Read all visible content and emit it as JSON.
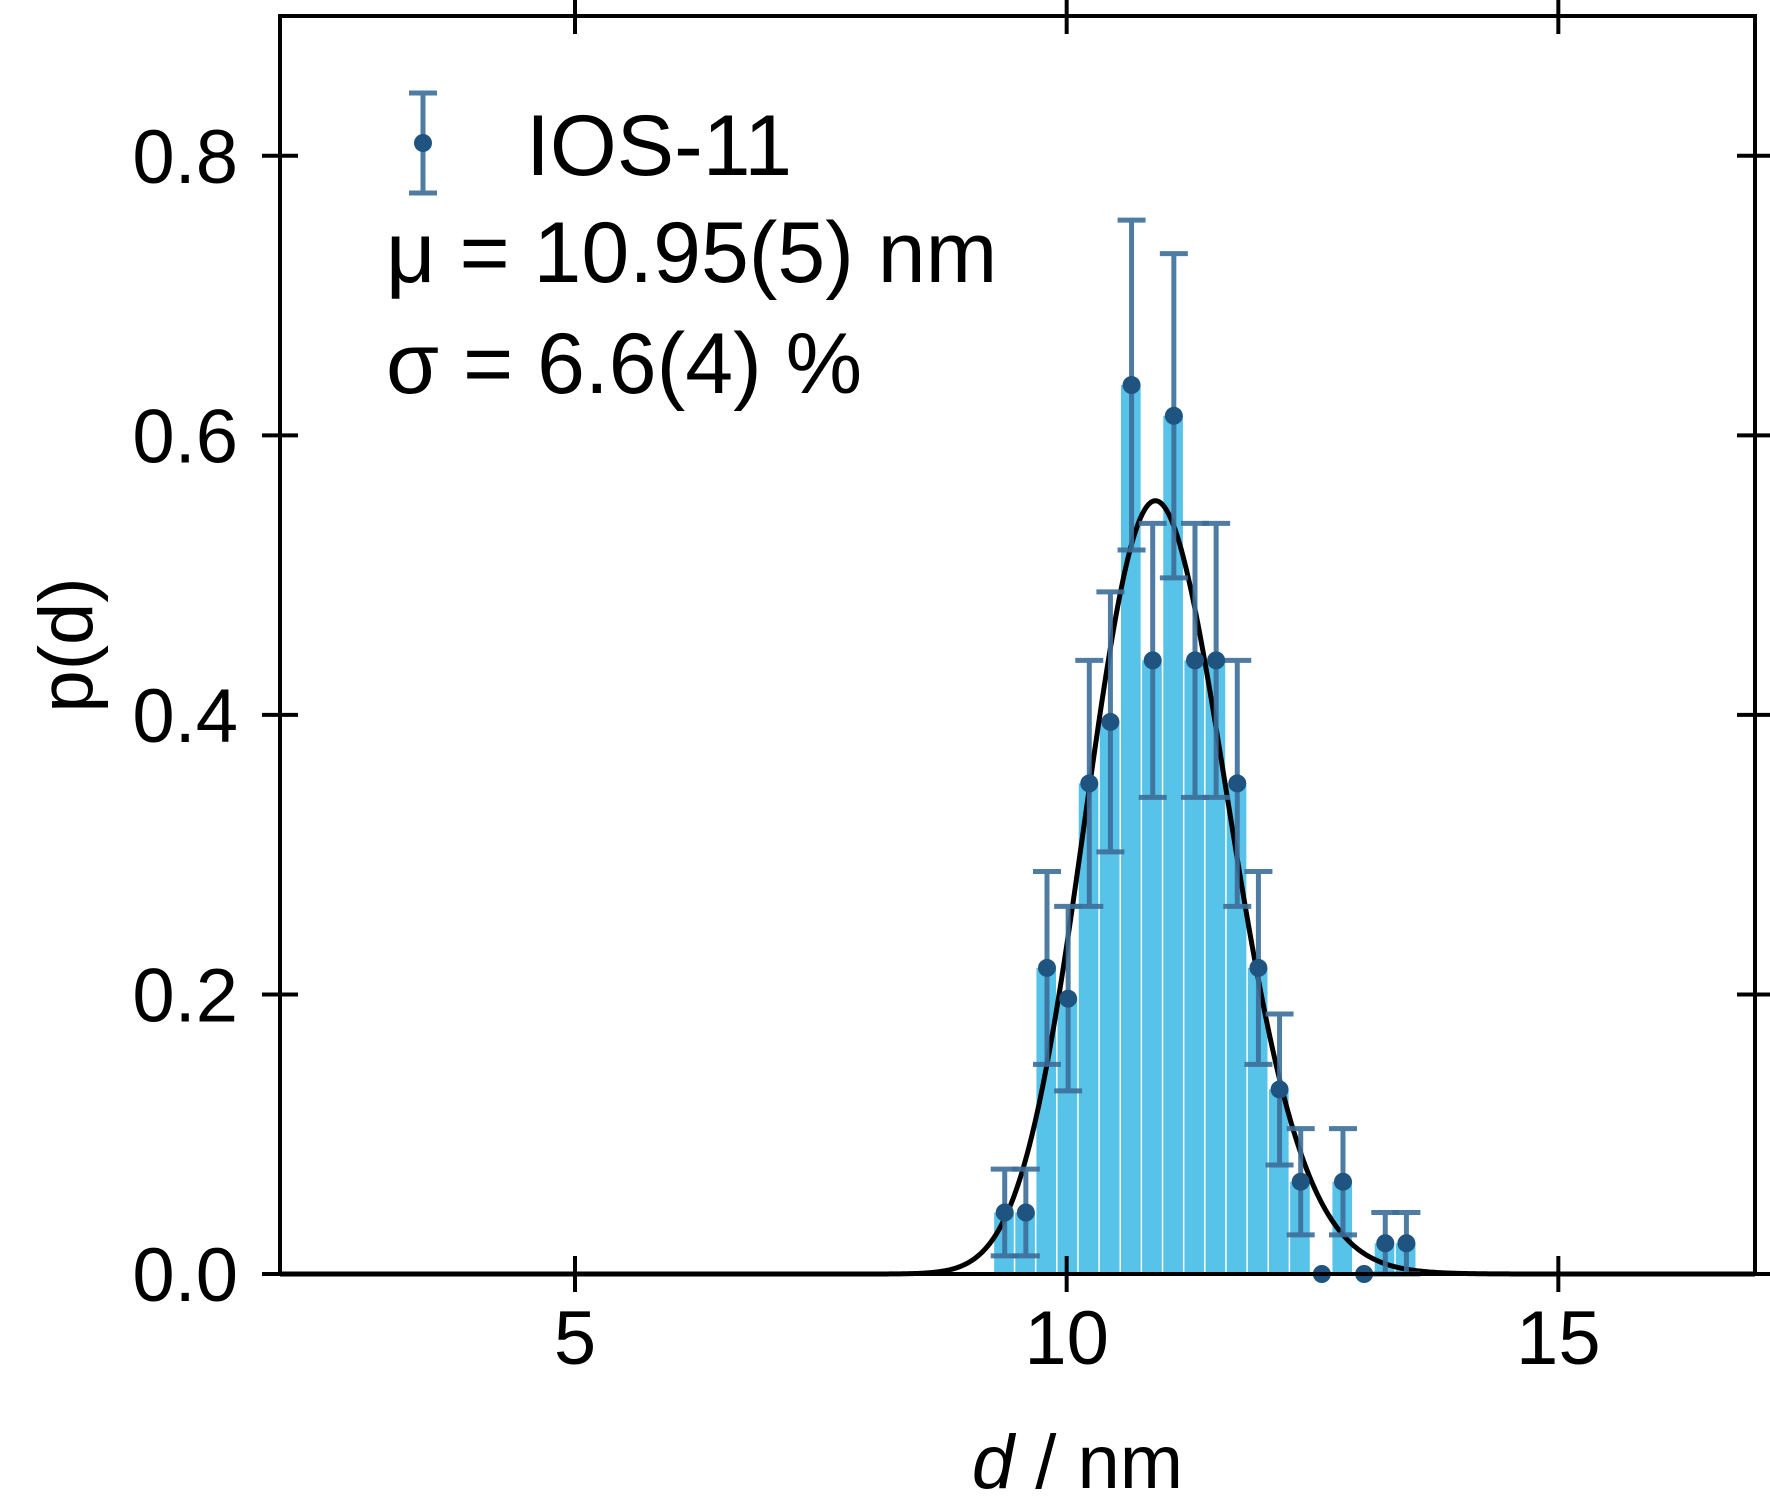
{
  "chart_data": {
    "type": "bar",
    "title": "",
    "xlabel": {
      "italic": "d",
      "rest": " / nm"
    },
    "ylabel": "p(d)",
    "xlim": [
      2,
      17
    ],
    "ylim": [
      0,
      0.9
    ],
    "xticks": [
      5,
      10,
      15
    ],
    "xtick_labels": [
      "5",
      "10",
      "15"
    ],
    "yticks": [
      0.0,
      0.2,
      0.4,
      0.6,
      0.8
    ],
    "ytick_labels": [
      "0.0",
      "0.2",
      "0.4",
      "0.6",
      "0.8"
    ],
    "bin_width": 0.215,
    "series": [
      {
        "name": "IOS-11",
        "kind": "histogram-with-errorbars",
        "x": [
          9.37,
          9.585,
          9.8,
          10.015,
          10.23,
          10.445,
          10.66,
          10.875,
          11.09,
          11.305,
          11.52,
          11.735,
          11.95,
          12.165,
          12.38,
          12.595,
          12.81,
          13.025,
          13.24,
          13.455
        ],
        "values": [
          0.044,
          0.044,
          0.219,
          0.197,
          0.351,
          0.395,
          0.636,
          0.439,
          0.614,
          0.439,
          0.439,
          0.351,
          0.219,
          0.132,
          0.066,
          0.0,
          0.066,
          0.0,
          0.022,
          0.022
        ],
        "errors": [
          0.031,
          0.031,
          0.069,
          0.066,
          0.088,
          0.093,
          0.118,
          0.098,
          0.116,
          0.098,
          0.098,
          0.088,
          0.069,
          0.054,
          0.038,
          0.0,
          0.038,
          0.0,
          0.022,
          0.022
        ]
      },
      {
        "name": "fit",
        "kind": "lognormal-fit",
        "mu_nm": 10.95,
        "sigma_rel": 0.066
      }
    ],
    "legend": {
      "label": "IOS-11",
      "placement": "top-left",
      "annotation_mu": "μ = 10.95(5) nm",
      "annotation_sigma": "σ = 6.6(4) %"
    },
    "colors": {
      "bars": "#57c3e8",
      "errorbars": "#3d6e9a",
      "markers": "#1f5480",
      "fit": "#000000",
      "axes": "#000000"
    },
    "grid": false
  }
}
